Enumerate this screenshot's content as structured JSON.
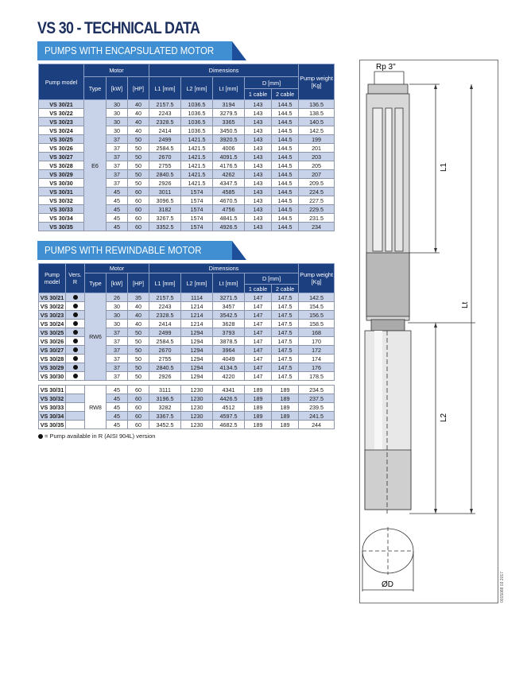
{
  "title": "VS 30 - TECHNICAL DATA",
  "section1": {
    "banner": "PUMPS WITH ENCAPSULATED MOTOR",
    "headers": {
      "pump_model": "Pump model",
      "motor": "Motor",
      "type": "Type",
      "kw": "[kW]",
      "hp": "[HP]",
      "dimensions": "Dimensions",
      "l1": "L1 [mm]",
      "l2": "L2 [mm]",
      "lt": "Lt [mm]",
      "d": "D [mm]",
      "cable1": "1 cable",
      "cable2": "2 cable",
      "weight": "Pump weight [Kg]"
    },
    "motor_type": "E6",
    "rows": [
      [
        "VS 30/21",
        "30",
        "40",
        "2157.5",
        "1036.5",
        "3194",
        "143",
        "144.5",
        "136.5"
      ],
      [
        "VS 30/22",
        "30",
        "40",
        "2243",
        "1036.5",
        "3279.5",
        "143",
        "144.5",
        "138.5"
      ],
      [
        "VS 30/23",
        "30",
        "40",
        "2328.5",
        "1036.5",
        "3365",
        "143",
        "144.5",
        "140.5"
      ],
      [
        "VS 30/24",
        "30",
        "40",
        "2414",
        "1036.5",
        "3450.5",
        "143",
        "144.5",
        "142.5"
      ],
      [
        "VS 30/25",
        "37",
        "50",
        "2499",
        "1421.5",
        "3920.5",
        "143",
        "144.5",
        "199"
      ],
      [
        "VS 30/26",
        "37",
        "50",
        "2584.5",
        "1421.5",
        "4006",
        "143",
        "144.5",
        "201"
      ],
      [
        "VS 30/27",
        "37",
        "50",
        "2670",
        "1421.5",
        "4091.5",
        "143",
        "144.5",
        "203"
      ],
      [
        "VS 30/28",
        "37",
        "50",
        "2755",
        "1421.5",
        "4176.5",
        "143",
        "144.5",
        "205"
      ],
      [
        "VS 30/29",
        "37",
        "50",
        "2840.5",
        "1421.5",
        "4262",
        "143",
        "144.5",
        "207"
      ],
      [
        "VS 30/30",
        "37",
        "50",
        "2926",
        "1421.5",
        "4347.5",
        "143",
        "144.5",
        "209.5"
      ],
      [
        "VS 30/31",
        "45",
        "60",
        "3011",
        "1574",
        "4585",
        "143",
        "144.5",
        "224.5"
      ],
      [
        "VS 30/32",
        "45",
        "60",
        "3096.5",
        "1574",
        "4670.5",
        "143",
        "144.5",
        "227.5"
      ],
      [
        "VS 30/33",
        "45",
        "60",
        "3182",
        "1574",
        "4756",
        "143",
        "144.5",
        "229.5"
      ],
      [
        "VS 30/34",
        "45",
        "60",
        "3267.5",
        "1574",
        "4841.5",
        "143",
        "144.5",
        "231.5"
      ],
      [
        "VS 30/35",
        "45",
        "60",
        "3352.5",
        "1574",
        "4926.5",
        "143",
        "144.5",
        "234"
      ]
    ]
  },
  "section2": {
    "banner": "PUMPS WITH REWINDABLE MOTOR",
    "headers": {
      "pump_model": "Pump model",
      "vers": "Vers. R",
      "motor": "Motor",
      "type": "Type",
      "kw": "[kW]",
      "hp": "[HP]",
      "dimensions": "Dimensions",
      "l1": "L1 [mm]",
      "l2": "L2 [mm]",
      "lt": "Lt [mm]",
      "d": "D [mm]",
      "cable1": "1 cable",
      "cable2": "2 cable",
      "weight": "Pump weight [Kg]"
    },
    "groups": [
      {
        "motor_type": "RW6",
        "rows": [
          [
            "VS 30/21",
            true,
            "26",
            "35",
            "2157.5",
            "1114",
            "3271.5",
            "147",
            "147.5",
            "142.5"
          ],
          [
            "VS 30/22",
            true,
            "30",
            "40",
            "2243",
            "1214",
            "3457",
            "147",
            "147.5",
            "154.5"
          ],
          [
            "VS 30/23",
            true,
            "30",
            "40",
            "2328.5",
            "1214",
            "3542.5",
            "147",
            "147.5",
            "156.5"
          ],
          [
            "VS 30/24",
            true,
            "30",
            "40",
            "2414",
            "1214",
            "3628",
            "147",
            "147.5",
            "158.5"
          ],
          [
            "VS 30/25",
            true,
            "37",
            "50",
            "2499",
            "1294",
            "3793",
            "147",
            "147.5",
            "168"
          ],
          [
            "VS 30/26",
            true,
            "37",
            "50",
            "2584.5",
            "1294",
            "3878.5",
            "147",
            "147.5",
            "170"
          ],
          [
            "VS 30/27",
            true,
            "37",
            "50",
            "2670",
            "1294",
            "3964",
            "147",
            "147.5",
            "172"
          ],
          [
            "VS 30/28",
            true,
            "37",
            "50",
            "2755",
            "1294",
            "4049",
            "147",
            "147.5",
            "174"
          ],
          [
            "VS 30/29",
            true,
            "37",
            "50",
            "2840.5",
            "1294",
            "4134.5",
            "147",
            "147.5",
            "176"
          ],
          [
            "VS 30/30",
            true,
            "37",
            "50",
            "2926",
            "1294",
            "4220",
            "147",
            "147.5",
            "178.5"
          ]
        ]
      },
      {
        "motor_type": "RW8",
        "rows": [
          [
            "VS 30/31",
            false,
            "45",
            "60",
            "3111",
            "1230",
            "4341",
            "189",
            "189",
            "234.5"
          ],
          [
            "VS 30/32",
            false,
            "45",
            "60",
            "3196.5",
            "1230",
            "4426.5",
            "189",
            "189",
            "237.5"
          ],
          [
            "VS 30/33",
            false,
            "45",
            "60",
            "3282",
            "1230",
            "4512",
            "189",
            "189",
            "239.5"
          ],
          [
            "VS 30/34",
            false,
            "45",
            "60",
            "3367.5",
            "1230",
            "4597.5",
            "189",
            "189",
            "241.5"
          ],
          [
            "VS 30/35",
            false,
            "45",
            "60",
            "3452.5",
            "1230",
            "4682.5",
            "189",
            "189",
            "244"
          ]
        ]
      }
    ],
    "note": "= Pump available in R (AISI 904L) version"
  },
  "diagram": {
    "rp": "Rp 3\"",
    "l1": "L1",
    "lt": "Lt",
    "l2": "L2",
    "d": "ØD",
    "code": "0015088 03 2017"
  },
  "colors": {
    "header": "#1c3f7f",
    "banner": "#3f8fd2",
    "row_shade": "#c8d2e8",
    "title": "#1d2f5e"
  }
}
